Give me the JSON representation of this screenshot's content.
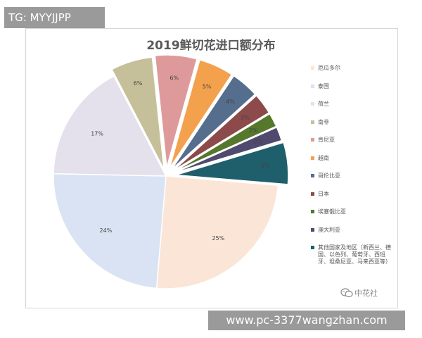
{
  "top_tag": "TG: MYYJJPP",
  "watermark": {
    "text": "中花社",
    "icon": "wechat-icon"
  },
  "url_banner": "www.pc-3377wangzhan.com",
  "colors": {
    "ecuador": "#fbe5d6",
    "thailand": "#dae3f3",
    "netherlands": "#e4e0ec",
    "south_africa": "#c6c09a",
    "kenya": "#de9a9a",
    "vietnam": "#f4a14d",
    "colombia": "#556e8d",
    "japan": "#8c4a4a",
    "ethiopia": "#55782d",
    "australia": "#4f4a6e",
    "other": "#1f5f6b"
  },
  "chart_data": {
    "type": "pie",
    "title": "2019鲜切花进口额分布",
    "slices": [
      {
        "name": "厄瓜多尔",
        "value": 25,
        "label": "25%",
        "color": "#fbe5d6"
      },
      {
        "name": "泰国",
        "value": 24,
        "label": "24%",
        "color": "#dae3f3"
      },
      {
        "name": "荷兰",
        "value": 17,
        "label": "17%",
        "color": "#e4e0ec"
      },
      {
        "name": "南非",
        "value": 6,
        "label": "6%",
        "color": "#c6c09a"
      },
      {
        "name": "肯尼亚",
        "value": 6,
        "label": "6%",
        "color": "#de9a9a"
      },
      {
        "name": "越南",
        "value": 5,
        "label": "5%",
        "color": "#f4a14d"
      },
      {
        "name": "哥伦比亚",
        "value": 4,
        "label": "4%",
        "color": "#556e8d"
      },
      {
        "name": "日本",
        "value": 3,
        "label": "3%",
        "color": "#8c4a4a"
      },
      {
        "name": "埃塞俄比亚",
        "value": 2,
        "label": "2%",
        "color": "#55782d"
      },
      {
        "name": "澳大利亚",
        "value": 2,
        "label": "2%",
        "color": "#4f4a6e"
      },
      {
        "name": "其他国家及地区（新西兰、德国、以色列、葡萄牙、西班牙、坦桑尼亚、马来西亚等）",
        "value": 6,
        "label": "6%",
        "color": "#1f5f6b"
      }
    ],
    "legend": {
      "position": "right",
      "items": [
        "厄瓜多尔",
        "泰国",
        "荷兰",
        "南非",
        "肯尼亚",
        "越南",
        "哥伦比亚",
        "日本",
        "埃塞俄比亚",
        "澳大利亚",
        "其他国家及地区（新西兰、德国、以色列、葡萄牙、西班牙、坦桑尼亚、马来西亚等）"
      ]
    }
  }
}
